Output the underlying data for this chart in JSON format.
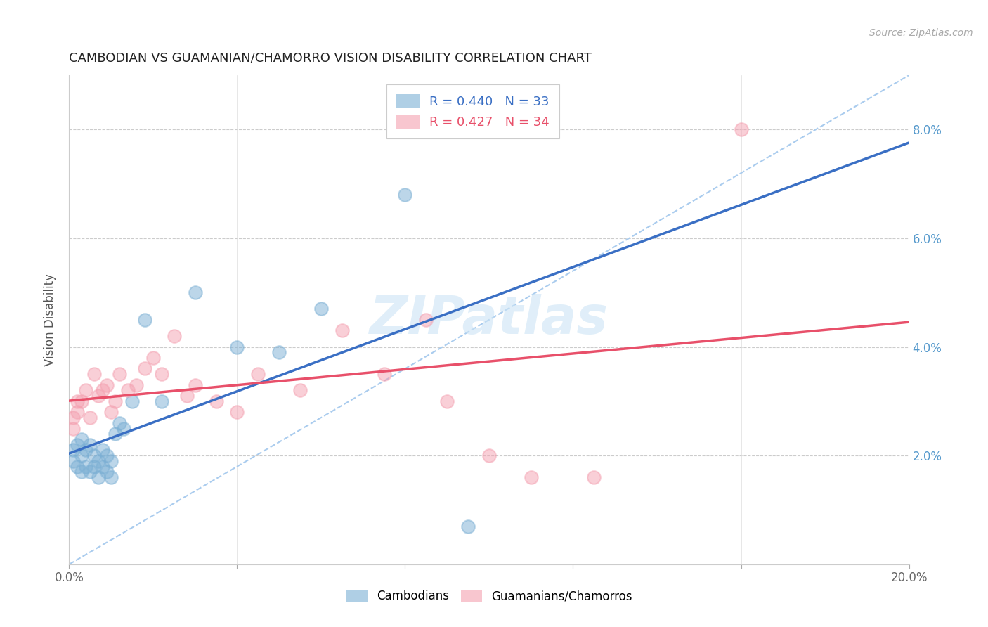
{
  "title": "CAMBODIAN VS GUAMANIAN/CHAMORRO VISION DISABILITY CORRELATION CHART",
  "source": "Source: ZipAtlas.com",
  "ylabel": "Vision Disability",
  "xlim": [
    0.0,
    0.2
  ],
  "ylim": [
    0.0,
    0.09
  ],
  "x_tick_positions": [
    0.0,
    0.04,
    0.08,
    0.12,
    0.16,
    0.2
  ],
  "x_tick_labels": [
    "0.0%",
    "",
    "",
    "",
    "",
    "20.0%"
  ],
  "y_tick_positions": [
    0.0,
    0.02,
    0.04,
    0.06,
    0.08
  ],
  "y_tick_labels_right": [
    "",
    "2.0%",
    "4.0%",
    "6.0%",
    "8.0%"
  ],
  "cambodian_color": "#7bafd4",
  "guamanian_color": "#f4a0b0",
  "line_blue": "#3a6fc4",
  "line_pink": "#e8506a",
  "dash_color": "#7bafd4",
  "cambodian_R": 0.44,
  "cambodian_N": 33,
  "guamanian_R": 0.427,
  "guamanian_N": 34,
  "watermark": "ZIPatlas",
  "cam_x": [
    0.001,
    0.001,
    0.002,
    0.002,
    0.003,
    0.003,
    0.003,
    0.004,
    0.004,
    0.005,
    0.005,
    0.006,
    0.006,
    0.007,
    0.007,
    0.008,
    0.008,
    0.009,
    0.009,
    0.01,
    0.01,
    0.011,
    0.012,
    0.013,
    0.015,
    0.018,
    0.022,
    0.03,
    0.04,
    0.05,
    0.06,
    0.08,
    0.095
  ],
  "cam_y": [
    0.019,
    0.021,
    0.018,
    0.022,
    0.017,
    0.02,
    0.023,
    0.018,
    0.021,
    0.017,
    0.022,
    0.018,
    0.02,
    0.016,
    0.019,
    0.018,
    0.021,
    0.017,
    0.02,
    0.016,
    0.019,
    0.024,
    0.026,
    0.025,
    0.03,
    0.045,
    0.03,
    0.05,
    0.04,
    0.039,
    0.047,
    0.068,
    0.007
  ],
  "gua_x": [
    0.001,
    0.001,
    0.002,
    0.002,
    0.003,
    0.004,
    0.005,
    0.006,
    0.007,
    0.008,
    0.009,
    0.01,
    0.011,
    0.012,
    0.014,
    0.016,
    0.018,
    0.02,
    0.022,
    0.025,
    0.028,
    0.03,
    0.035,
    0.04,
    0.045,
    0.055,
    0.065,
    0.075,
    0.085,
    0.09,
    0.1,
    0.11,
    0.125,
    0.16
  ],
  "gua_y": [
    0.025,
    0.027,
    0.028,
    0.03,
    0.03,
    0.032,
    0.027,
    0.035,
    0.031,
    0.032,
    0.033,
    0.028,
    0.03,
    0.035,
    0.032,
    0.033,
    0.036,
    0.038,
    0.035,
    0.042,
    0.031,
    0.033,
    0.03,
    0.028,
    0.035,
    0.032,
    0.043,
    0.035,
    0.045,
    0.03,
    0.02,
    0.016,
    0.016,
    0.08
  ]
}
